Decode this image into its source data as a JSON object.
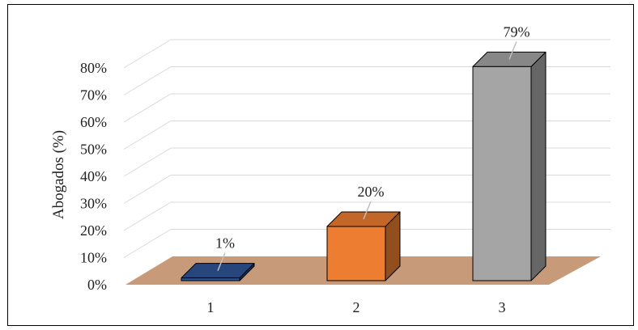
{
  "chart_data": {
    "type": "bar",
    "style": "3d-column",
    "categories": [
      "1",
      "2",
      "3"
    ],
    "values": [
      1,
      20,
      79
    ],
    "data_labels": [
      "1%",
      "20%",
      "79%"
    ],
    "ylabel": "Abogados (%)",
    "ylim": [
      0,
      80
    ],
    "yticks": [
      "0%",
      "10%",
      "20%",
      "30%",
      "40%",
      "50%",
      "60%",
      "70%",
      "80%"
    ],
    "grid": true,
    "legend": "none",
    "colors": [
      "#2f5597",
      "#ed7d31",
      "#a5a5a5"
    ],
    "floor_color": "#c79b7a"
  }
}
